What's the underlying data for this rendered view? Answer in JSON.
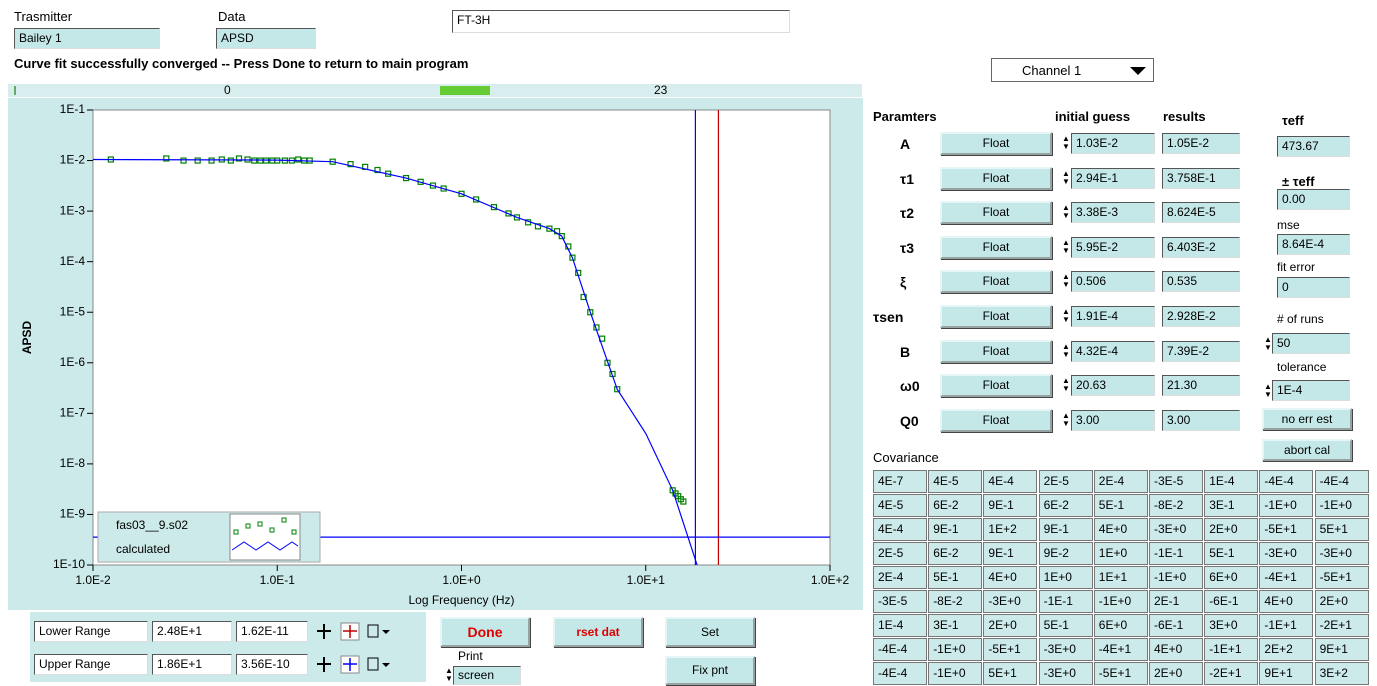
{
  "header": {
    "transmitter_label": "Trasmitter",
    "transmitter": "Bailey 1",
    "data_label": "Data",
    "data": "APSD",
    "file": "FT-3H",
    "status": "Curve fit successfully converged -- Press Done to return to main program",
    "channel": "Channel 1"
  },
  "progress": {
    "left": "0",
    "right": "23"
  },
  "chart_data": {
    "type": "scatter",
    "xlabel": "Log Frequency (Hz)",
    "ylabel": "APSD",
    "xscale": "log",
    "yscale": "log",
    "xlim": [
      0.01,
      100
    ],
    "ylim": [
      1e-10,
      0.1
    ],
    "xticks": [
      {
        "value": 0.01,
        "label": "1.0E-2"
      },
      {
        "value": 0.1,
        "label": "1.0E-1"
      },
      {
        "value": 1,
        "label": "1.0E+0"
      },
      {
        "value": 10,
        "label": "1.0E+1"
      },
      {
        "value": 100,
        "label": "1.0E+2"
      }
    ],
    "yticks": [
      {
        "value": 1e-10,
        "label": "1E-10"
      },
      {
        "value": 1e-09,
        "label": "1E-9"
      },
      {
        "value": 1e-08,
        "label": "1E-8"
      },
      {
        "value": 1e-07,
        "label": "1E-7"
      },
      {
        "value": 1e-06,
        "label": "1E-6"
      },
      {
        "value": 1e-05,
        "label": "1E-5"
      },
      {
        "value": 0.0001,
        "label": "1E-4"
      },
      {
        "value": 0.001,
        "label": "1E-3"
      },
      {
        "value": 0.01,
        "label": "1E-2"
      },
      {
        "value": 0.1,
        "label": "1E-1"
      }
    ],
    "series": [
      {
        "name": "fas03__9.s02",
        "color": "#008000",
        "mode": "markers",
        "x": [
          0.0125,
          0.025,
          0.031,
          0.037,
          0.044,
          0.05,
          0.056,
          0.062,
          0.069,
          0.075,
          0.081,
          0.087,
          0.094,
          0.1,
          0.11,
          0.12,
          0.13,
          0.14,
          0.15,
          0.2,
          0.25,
          0.3,
          0.35,
          0.4,
          0.5,
          0.6,
          0.7,
          0.8,
          1.0,
          1.2,
          1.5,
          1.8,
          2.0,
          2.3,
          2.6,
          3.0,
          3.3,
          3.5,
          3.8,
          4.0,
          4.3,
          4.6,
          5.0,
          5.4,
          5.8,
          6.2,
          6.6,
          7.0,
          14.0,
          14.5,
          15.0,
          15.5,
          16.0
        ],
        "values": [
          0.0105,
          0.011,
          0.01,
          0.01,
          0.01,
          0.0105,
          0.01,
          0.011,
          0.0105,
          0.01,
          0.01,
          0.01,
          0.01,
          0.01,
          0.01,
          0.01,
          0.0105,
          0.01,
          0.01,
          0.0095,
          0.0085,
          0.0075,
          0.0065,
          0.0055,
          0.0045,
          0.0038,
          0.0032,
          0.0028,
          0.0022,
          0.0017,
          0.0012,
          0.0009,
          0.00075,
          0.0006,
          0.0005,
          0.00045,
          0.0004,
          0.00032,
          0.0002,
          0.00012,
          6e-05,
          2e-05,
          1e-05,
          5e-06,
          3e-06,
          1e-06,
          6e-07,
          3e-07,
          3e-09,
          2.6e-09,
          2.3e-09,
          2e-09,
          1.8e-09
        ]
      },
      {
        "name": "calculated",
        "color": "#0000ff",
        "mode": "line",
        "x": [
          0.01,
          0.1,
          0.2,
          0.5,
          1.0,
          2.0,
          3.0,
          3.5,
          4.0,
          5.0,
          7.0,
          10.0,
          14.0,
          19.0
        ],
        "values": [
          0.0105,
          0.0102,
          0.0095,
          0.0045,
          0.0022,
          0.00075,
          0.00045,
          0.00032,
          0.00012,
          1e-05,
          3e-07,
          4e-08,
          3e-09,
          1e-10
        ]
      }
    ]
  },
  "ranges": [
    {
      "label": "Lower Range",
      "x": {
        "value": 24.8,
        "label": "2.48E+1"
      },
      "y": {
        "value": 1.62e-11,
        "label": "1.62E-11"
      },
      "color": "#c00000"
    },
    {
      "label": "Upper Range",
      "x": {
        "value": 18.6,
        "label": "1.86E+1"
      },
      "y": {
        "value": 3.56e-10,
        "label": "3.56E-10"
      },
      "color": "#0000ff"
    }
  ],
  "buttons": {
    "done": "Done",
    "reset": "rset dat",
    "set": "Set",
    "fix": "Fix pnt",
    "print_label": "Print",
    "print_target": "screen"
  },
  "parameters": {
    "headers": [
      "Paramters",
      "initial guess",
      "results"
    ],
    "rows": [
      {
        "name": "A",
        "mode": "Float",
        "initial": "1.03E-2",
        "result": "1.05E-2"
      },
      {
        "name": "τ1",
        "mode": "Float",
        "initial": "2.94E-1",
        "result": "3.758E-1"
      },
      {
        "name": "τ2",
        "mode": "Float",
        "initial": "3.38E-3",
        "result": "8.624E-5"
      },
      {
        "name": "τ3",
        "mode": "Float",
        "initial": "5.95E-2",
        "result": "6.403E-2"
      },
      {
        "name": "ξ",
        "mode": "Float",
        "initial": "0.506",
        "result": "0.535"
      },
      {
        "name": "τsen",
        "mode": "Float",
        "initial": "1.91E-4",
        "result": "2.928E-2"
      },
      {
        "name": "B",
        "mode": "Float",
        "initial": "4.32E-4",
        "result": "7.39E-2"
      },
      {
        "name": "ω0",
        "mode": "Float",
        "initial": "20.63",
        "result": "21.30"
      },
      {
        "name": "Q0",
        "mode": "Float",
        "initial": "3.00",
        "result": "3.00"
      }
    ]
  },
  "fit": {
    "tau_eff_label": "τeff",
    "tau_eff": "473.67",
    "tau_err_label": "± τeff",
    "tau_err": "0.00",
    "mse_label": "mse",
    "mse": "8.64E-4",
    "fit_error_label": "fit error",
    "fit_error": "0",
    "runs_label": "# of runs",
    "runs": "50",
    "tolerance_label": "tolerance",
    "tolerance": "1E-4",
    "no_err_button": "no err est",
    "abort_button": "abort cal"
  },
  "covariance": {
    "title": "Covariance",
    "rows": [
      [
        "4E-7",
        "4E-5",
        "4E-4",
        "2E-5",
        "2E-4",
        "-3E-5",
        "1E-4",
        "-4E-4",
        "-4E-4"
      ],
      [
        "4E-5",
        "6E-2",
        "9E-1",
        "6E-2",
        "5E-1",
        "-8E-2",
        "3E-1",
        "-1E+0",
        "-1E+0"
      ],
      [
        "4E-4",
        "9E-1",
        "1E+2",
        "9E-1",
        "4E+0",
        "-3E+0",
        "2E+0",
        "-5E+1",
        "5E+1"
      ],
      [
        "2E-5",
        "6E-2",
        "9E-1",
        "9E-2",
        "1E+0",
        "-1E-1",
        "5E-1",
        "-3E+0",
        "-3E+0"
      ],
      [
        "2E-4",
        "5E-1",
        "4E+0",
        "1E+0",
        "1E+1",
        "-1E+0",
        "6E+0",
        "-4E+1",
        "-5E+1"
      ],
      [
        "-3E-5",
        "-8E-2",
        "-3E+0",
        "-1E-1",
        "-1E+0",
        "2E-1",
        "-6E-1",
        "4E+0",
        "2E+0"
      ],
      [
        "1E-4",
        "3E-1",
        "2E+0",
        "5E-1",
        "6E+0",
        "-6E-1",
        "3E+0",
        "-1E+1",
        "-2E+1"
      ],
      [
        "-4E-4",
        "-1E+0",
        "-5E+1",
        "-3E+0",
        "-4E+1",
        "4E+0",
        "-1E+1",
        "2E+2",
        "9E+1"
      ],
      [
        "-4E-4",
        "-1E+0",
        "5E+1",
        "-3E+0",
        "-5E+1",
        "2E+0",
        "-2E+1",
        "9E+1",
        "3E+2"
      ]
    ]
  }
}
